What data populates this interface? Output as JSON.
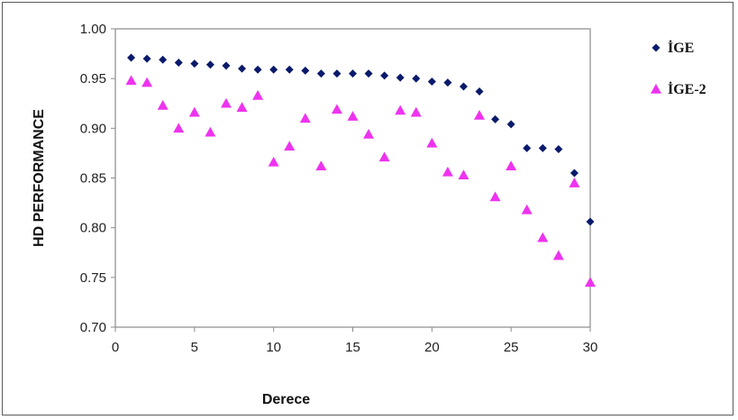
{
  "chart_data": {
    "type": "scatter",
    "title": "",
    "xlabel": "Derece",
    "ylabel": "HD PERFORMANCE",
    "xlim": [
      0,
      30
    ],
    "ylim": [
      0.7,
      1.0
    ],
    "x_ticks": [
      "0",
      "5",
      "10",
      "15",
      "20",
      "25",
      "30"
    ],
    "y_ticks": [
      "0.70",
      "0.75",
      "0.80",
      "0.85",
      "0.90",
      "0.95",
      "1.00"
    ],
    "grid": false,
    "legend_position": "right",
    "series": [
      {
        "name": "İGE",
        "marker": "diamond",
        "color": "#0a1a6b",
        "points": [
          [
            1,
            0.971
          ],
          [
            2,
            0.97
          ],
          [
            3,
            0.969
          ],
          [
            4,
            0.966
          ],
          [
            5,
            0.965
          ],
          [
            6,
            0.964
          ],
          [
            7,
            0.963
          ],
          [
            8,
            0.96
          ],
          [
            9,
            0.959
          ],
          [
            10,
            0.959
          ],
          [
            11,
            0.959
          ],
          [
            12,
            0.958
          ],
          [
            13,
            0.955
          ],
          [
            14,
            0.955
          ],
          [
            15,
            0.955
          ],
          [
            16,
            0.955
          ],
          [
            17,
            0.953
          ],
          [
            18,
            0.951
          ],
          [
            19,
            0.95
          ],
          [
            20,
            0.947
          ],
          [
            21,
            0.946
          ],
          [
            22,
            0.942
          ],
          [
            23,
            0.937
          ],
          [
            24,
            0.909
          ],
          [
            25,
            0.904
          ],
          [
            26,
            0.88
          ],
          [
            27,
            0.88
          ],
          [
            28,
            0.879
          ],
          [
            29,
            0.855
          ],
          [
            30,
            0.806
          ]
        ]
      },
      {
        "name": "İGE-2",
        "marker": "triangle",
        "color": "#ee33ee",
        "points": [
          [
            1,
            0.948
          ],
          [
            2,
            0.946
          ],
          [
            3,
            0.923
          ],
          [
            4,
            0.9
          ],
          [
            5,
            0.916
          ],
          [
            6,
            0.896
          ],
          [
            7,
            0.925
          ],
          [
            8,
            0.921
          ],
          [
            9,
            0.933
          ],
          [
            10,
            0.866
          ],
          [
            11,
            0.882
          ],
          [
            12,
            0.91
          ],
          [
            13,
            0.862
          ],
          [
            14,
            0.919
          ],
          [
            15,
            0.912
          ],
          [
            16,
            0.894
          ],
          [
            17,
            0.871
          ],
          [
            18,
            0.918
          ],
          [
            19,
            0.916
          ],
          [
            20,
            0.885
          ],
          [
            21,
            0.856
          ],
          [
            22,
            0.853
          ],
          [
            23,
            0.913
          ],
          [
            24,
            0.831
          ],
          [
            25,
            0.862
          ],
          [
            26,
            0.818
          ],
          [
            27,
            0.79
          ],
          [
            28,
            0.772
          ],
          [
            29,
            0.845
          ],
          [
            30,
            0.745
          ]
        ]
      }
    ]
  }
}
